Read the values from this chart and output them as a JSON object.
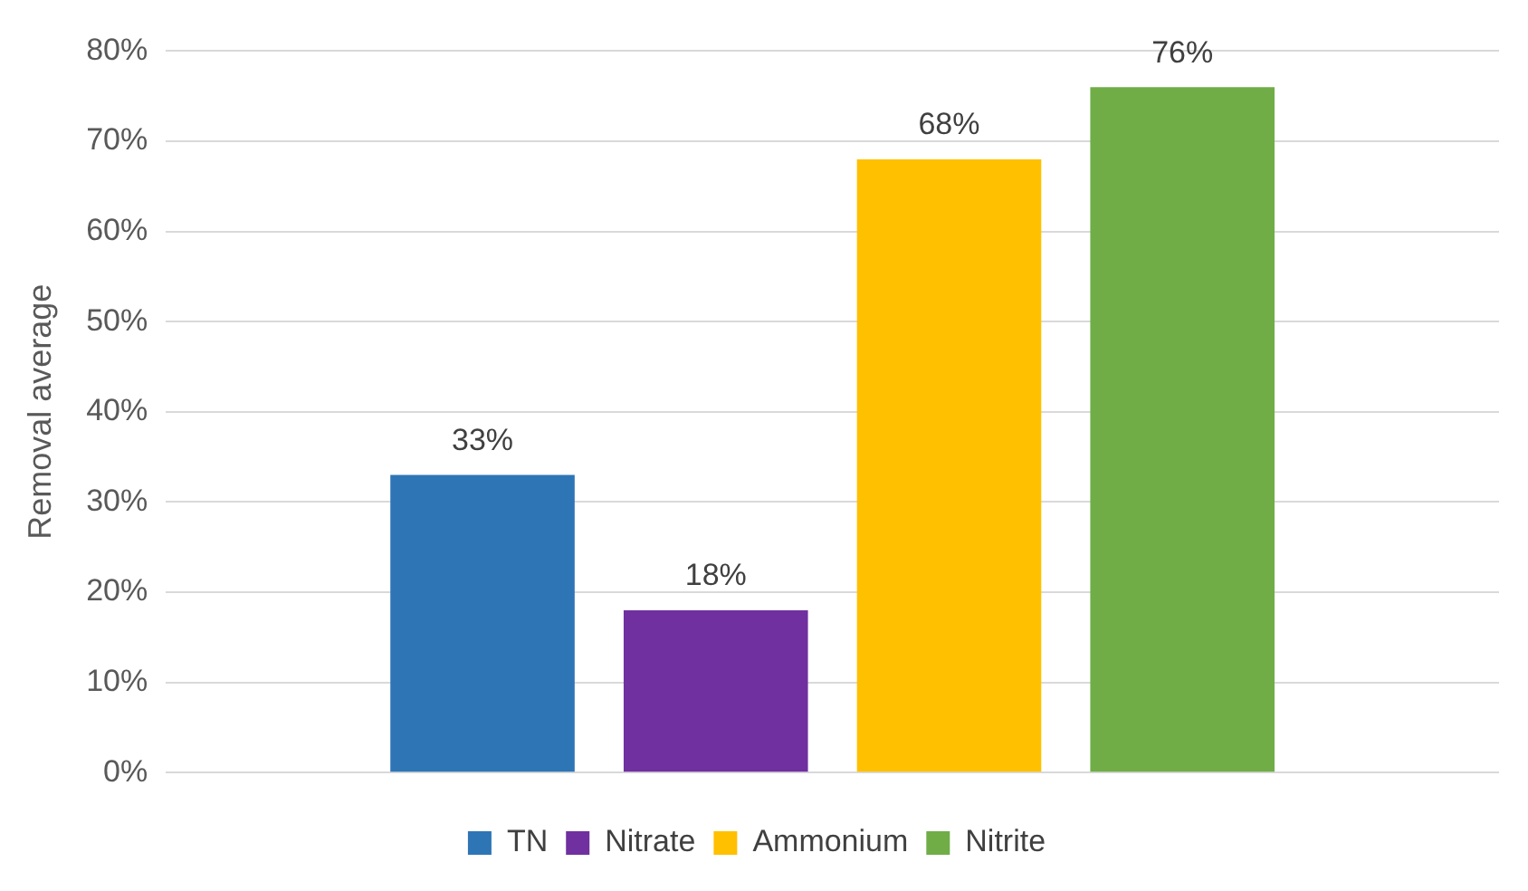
{
  "chart_data": {
    "type": "bar",
    "ylabel": "Removal average",
    "categories": [
      null
    ],
    "series": [
      {
        "name": "TN",
        "color": "#2e75b6",
        "values": [
          33
        ]
      },
      {
        "name": "Nitrate",
        "color": "#7030a0",
        "values": [
          18
        ]
      },
      {
        "name": "Ammonium",
        "color": "#ffc000",
        "values": [
          68
        ]
      },
      {
        "name": "Nitrite",
        "color": "#70ad47",
        "values": [
          76
        ]
      }
    ],
    "ylim": [
      0,
      80
    ],
    "yticks": [
      {
        "value": 0,
        "label": "0%"
      },
      {
        "value": 10,
        "label": "10%"
      },
      {
        "value": 20,
        "label": "20%"
      },
      {
        "value": 30,
        "label": "30%"
      },
      {
        "value": 40,
        "label": "40%"
      },
      {
        "value": 50,
        "label": "50%"
      },
      {
        "value": 60,
        "label": "60%"
      },
      {
        "value": 70,
        "label": "70%"
      },
      {
        "value": 80,
        "label": "80%"
      }
    ],
    "value_labels": [
      "33%",
      "18%",
      "68%",
      "76%"
    ],
    "grid": "y",
    "legend": "bottom"
  }
}
